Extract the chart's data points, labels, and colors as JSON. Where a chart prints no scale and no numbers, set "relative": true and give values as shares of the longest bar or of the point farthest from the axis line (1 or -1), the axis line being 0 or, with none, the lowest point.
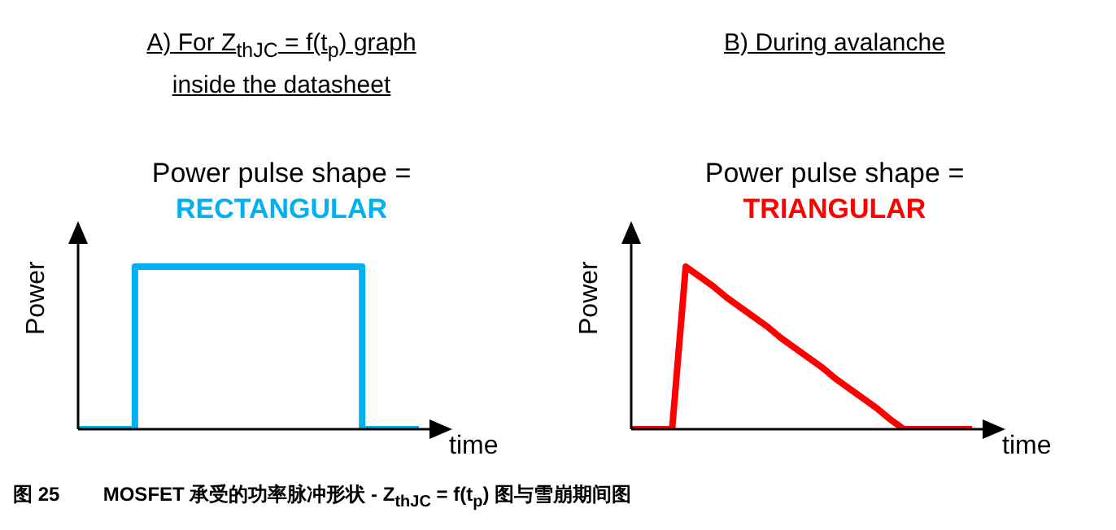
{
  "chart_data": [
    {
      "type": "step",
      "title": "A) For Z$_{thJC}$ = f(t$_{p}$) graph inside the datasheet",
      "subtitle": "Power pulse shape =",
      "ylabel": "Power",
      "xlabel": "time",
      "relative": true,
      "marker": "none",
      "line_style": "solid",
      "annotations": [
        "RECTANGULAR",
        "图 25        MOSFET 承受的功率脉冲形状 - Z$_{thJC}$ = f(t$_{p}$) 图与雪崩期间图"
      ],
      "categories": [
        null,
        null,
        null,
        null,
        null,
        null,
        null
      ],
      "series": [
        {
          "color": "#00b0f0",
          "values": [
            0,
            1,
            1,
            1,
            1,
            0,
            0
          ]
        }
      ]
    },
    {
      "type": "line",
      "title": "B) During avalanche",
      "subtitle": "Power pulse shape =",
      "ylabel": "Power",
      "xlabel": "time",
      "relative": true,
      "marker": "none",
      "line_style": "solid",
      "annotations": [
        "TRIANGULAR"
      ],
      "categories": [
        null,
        null,
        null,
        null,
        null,
        null,
        null,
        null,
        null,
        null,
        null,
        null,
        null,
        null,
        null,
        null,
        null,
        null,
        null,
        null,
        null,
        null,
        null,
        null,
        null,
        null
      ],
      "series": [
        {
          "color": "#ff0000",
          "values": [
            0,
            0,
            0,
            0,
            1,
            0.94,
            0.88,
            0.81,
            0.75,
            0.69,
            0.63,
            0.56,
            0.5,
            0.44,
            0.38,
            0.31,
            0.25,
            0.19,
            0.13,
            0.06,
            0,
            0,
            0,
            0,
            0,
            0
          ]
        }
      ]
    }
  ]
}
